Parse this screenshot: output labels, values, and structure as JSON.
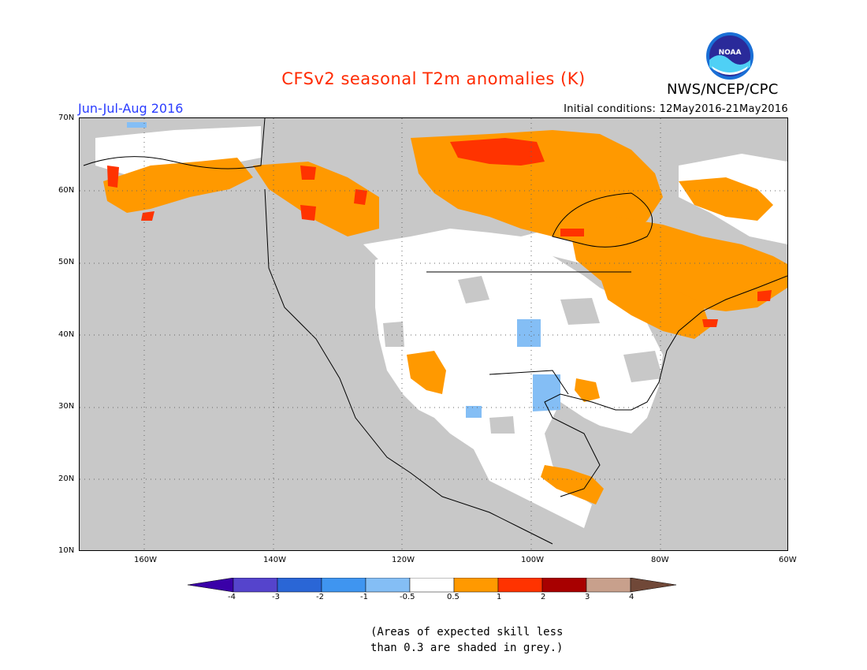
{
  "title": "CFSv2 seasonal T2m anomalies (K)",
  "season": "Jun-Jul-Aug 2016",
  "initial_conditions": "Initial conditions: 12May2016-21May2016",
  "agency": "NWS/NCEP/CPC",
  "logo_text": "NOAA",
  "note_lines": [
    "(Areas of expected skill less",
    "than 0.3 are shaded in grey.)"
  ],
  "lat_labels": [
    "70N",
    "60N",
    "50N",
    "40N",
    "30N",
    "20N",
    "10N"
  ],
  "lon_labels": [
    "160W",
    "140W",
    "120W",
    "100W",
    "80W",
    "60W"
  ],
  "colorbar": {
    "labels": [
      "-4",
      "-3",
      "-2",
      "-1",
      "-0.5",
      "0.5",
      "1",
      "2",
      "3",
      "4"
    ],
    "colors": [
      "#3a00a8",
      "#5544cc",
      "#2a66d6",
      "#3f95f0",
      "#84bef5",
      "#ffffff",
      "#ff9900",
      "#ff3300",
      "#a80000",
      "#c8a08c",
      "#704838"
    ]
  },
  "colors": {
    "land_no_skill": "#c8c8c8",
    "ocean": "#c8c8c8",
    "skill_land": "#ffffff",
    "title": "#ff2a00",
    "season": "#2a3cff"
  }
}
